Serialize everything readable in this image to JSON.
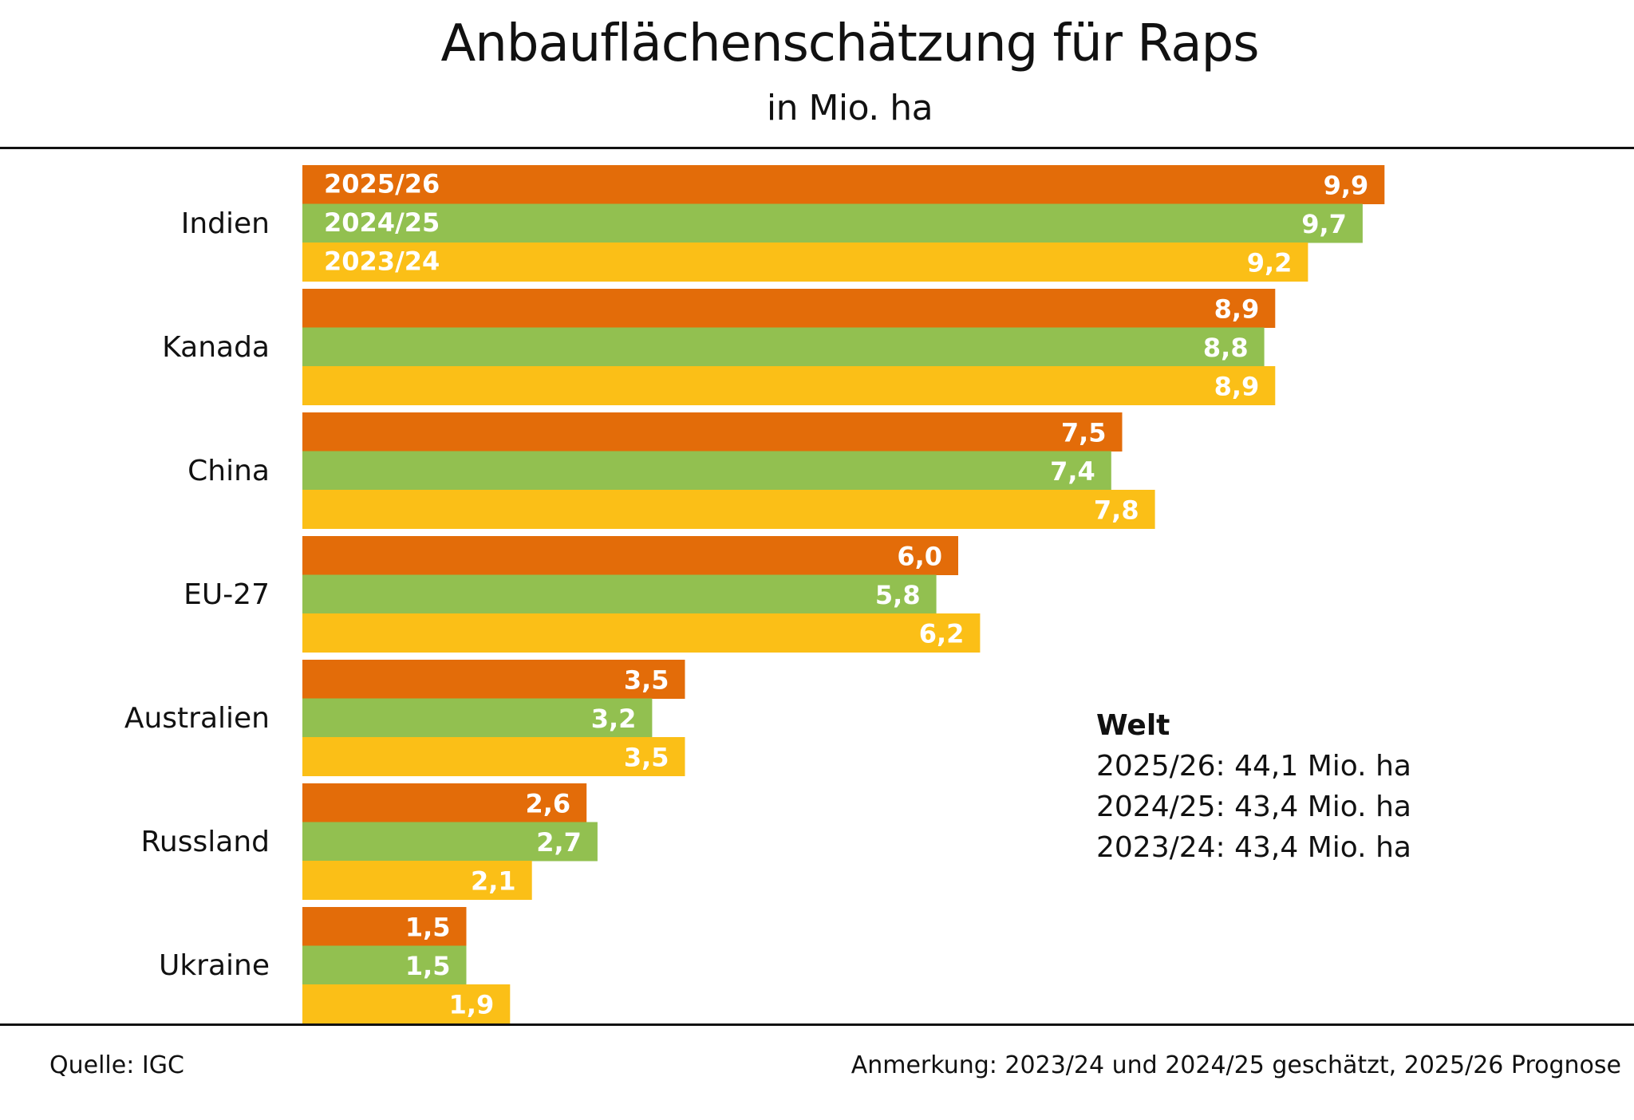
{
  "header": {
    "title": "Anbauflächenschätzung für Raps",
    "subtitle": "in Mio. ha"
  },
  "colors": {
    "2025/26": "#E36C09",
    "2024/25": "#92C050",
    "2023/24": "#FBBF17"
  },
  "chart_data": {
    "type": "bar",
    "orientation": "horizontal",
    "title": "Anbauflächenschätzung für Raps",
    "subtitle": "in Mio. ha",
    "xlabel": "",
    "ylabel": "",
    "unit": "Mio. ha",
    "grid": false,
    "legend": "inline in first category bars (top-left)",
    "categories": [
      "Indien",
      "Kanada",
      "China",
      "EU-27",
      "Australien",
      "Russland",
      "Ukraine"
    ],
    "series": [
      {
        "name": "2025/26",
        "color": "#E36C09",
        "values": [
          9.9,
          8.9,
          7.5,
          6.0,
          3.5,
          2.6,
          1.5
        ],
        "labels": [
          "9,9",
          "8,9",
          "7,5",
          "6,0",
          "3,5",
          "2,6",
          "1,5"
        ]
      },
      {
        "name": "2024/25",
        "color": "#92C050",
        "values": [
          9.7,
          8.8,
          7.4,
          5.8,
          3.2,
          2.7,
          1.5
        ],
        "labels": [
          "9,7",
          "8,8",
          "7,4",
          "5,8",
          "3,2",
          "2,7",
          "1,5"
        ]
      },
      {
        "name": "2023/24",
        "color": "#FBBF17",
        "values": [
          9.2,
          8.9,
          7.8,
          6.2,
          3.5,
          2.1,
          1.9
        ],
        "labels": [
          "9,2",
          "8,9",
          "7,8",
          "6,2",
          "3,5",
          "2,1",
          "1,9"
        ]
      }
    ],
    "xlim": [
      0,
      9.9
    ]
  },
  "world": {
    "heading": "Welt",
    "lines": [
      "2025/26: 44,1 Mio. ha",
      "2024/25: 43,4 Mio. ha",
      "2023/24: 43,4 Mio. ha"
    ]
  },
  "footer": {
    "source": "Quelle: IGC",
    "note": "Anmerkung: 2023/24 und 2024/25 geschätzt, 2025/26 Prognose"
  }
}
